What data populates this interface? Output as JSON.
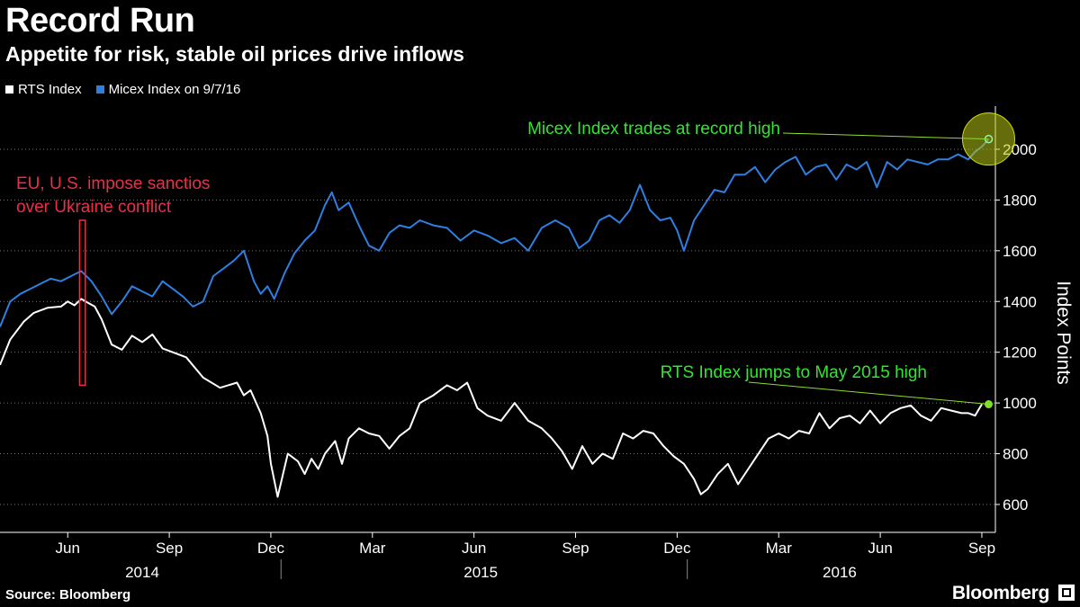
{
  "header": {
    "title": "Record Run",
    "subtitle": "Appetite for risk, stable oil prices drive inflows"
  },
  "legend": [
    {
      "label": "RTS Index",
      "color": "#ffffff"
    },
    {
      "label": "Micex Index on 9/7/16",
      "color": "#2f7fe0"
    }
  ],
  "footer": {
    "source": "Source: Bloomberg",
    "brand": "Bloomberg"
  },
  "chart_data": {
    "type": "line",
    "title": "Record Run",
    "subtitle": "Appetite for risk, stable oil prices drive inflows",
    "ylabel": "Index Points",
    "ylim": [
      490,
      2170
    ],
    "yticks": [
      600,
      800,
      1000,
      1200,
      1400,
      1600,
      1800,
      2000
    ],
    "x_unit": "months since 2014-04-01",
    "xlim": [
      0,
      29.4
    ],
    "grid": "horizontal dotted",
    "legend_position": "top-left",
    "month_ticks": [
      {
        "label": "Jun",
        "x": 2
      },
      {
        "label": "Sep",
        "x": 5
      },
      {
        "label": "Dec",
        "x": 8
      },
      {
        "label": "Mar",
        "x": 11
      },
      {
        "label": "Jun",
        "x": 14
      },
      {
        "label": "Sep",
        "x": 17
      },
      {
        "label": "Dec",
        "x": 20
      },
      {
        "label": "Mar",
        "x": 23
      },
      {
        "label": "Jun",
        "x": 26
      },
      {
        "label": "Sep",
        "x": 29
      }
    ],
    "years": [
      {
        "label": "2014",
        "x": 4.2
      },
      {
        "label": "2015",
        "x": 14.2
      },
      {
        "label": "2016",
        "x": 24.8
      }
    ],
    "year_dividers": [
      8.3,
      20.3
    ],
    "series": [
      {
        "name": "RTS Index",
        "color": "#ffffff",
        "x": [
          0,
          0.3,
          0.7,
          1.0,
          1.4,
          1.8,
          2.0,
          2.2,
          2.4,
          2.6,
          2.8,
          3.0,
          3.3,
          3.6,
          3.9,
          4.2,
          4.5,
          4.8,
          5.1,
          5.5,
          6.0,
          6.5,
          7.0,
          7.2,
          7.4,
          7.7,
          7.9,
          8.0,
          8.2,
          8.5,
          8.8,
          9.0,
          9.2,
          9.4,
          9.6,
          9.9,
          10.1,
          10.3,
          10.6,
          10.9,
          11.2,
          11.5,
          11.8,
          12.1,
          12.4,
          12.8,
          13.2,
          13.5,
          13.8,
          14.1,
          14.4,
          14.8,
          15.2,
          15.6,
          16.0,
          16.3,
          16.6,
          16.9,
          17.2,
          17.5,
          17.8,
          18.1,
          18.4,
          18.7,
          19.0,
          19.3,
          19.6,
          19.9,
          20.2,
          20.5,
          20.7,
          20.9,
          21.2,
          21.5,
          21.8,
          22.1,
          22.4,
          22.7,
          23.0,
          23.3,
          23.6,
          23.9,
          24.2,
          24.5,
          24.8,
          25.1,
          25.4,
          25.7,
          26.0,
          26.3,
          26.6,
          26.9,
          27.2,
          27.5,
          27.8,
          28.1,
          28.4,
          28.6,
          28.8,
          29.0
        ],
        "y": [
          1150,
          1250,
          1320,
          1355,
          1375,
          1380,
          1400,
          1385,
          1410,
          1395,
          1380,
          1330,
          1230,
          1210,
          1265,
          1240,
          1270,
          1215,
          1200,
          1180,
          1100,
          1060,
          1080,
          1030,
          1050,
          960,
          870,
          760,
          630,
          800,
          770,
          720,
          780,
          740,
          800,
          850,
          760,
          860,
          900,
          880,
          870,
          820,
          870,
          900,
          1000,
          1030,
          1070,
          1050,
          1080,
          980,
          950,
          930,
          1000,
          930,
          900,
          860,
          810,
          740,
          830,
          760,
          800,
          780,
          880,
          860,
          890,
          880,
          830,
          790,
          760,
          700,
          640,
          660,
          720,
          760,
          680,
          740,
          800,
          860,
          880,
          860,
          890,
          880,
          960,
          900,
          940,
          950,
          920,
          970,
          920,
          960,
          980,
          990,
          950,
          930,
          980,
          970,
          960,
          960,
          950,
          995
        ]
      },
      {
        "name": "Micex Index on 9/7/16",
        "color": "#2f7fe0",
        "x": [
          0,
          0.3,
          0.6,
          0.9,
          1.2,
          1.5,
          1.8,
          2.1,
          2.4,
          2.7,
          3.0,
          3.3,
          3.6,
          3.9,
          4.2,
          4.5,
          4.8,
          5.1,
          5.4,
          5.7,
          6.0,
          6.3,
          6.6,
          6.9,
          7.2,
          7.5,
          7.7,
          7.9,
          8.1,
          8.4,
          8.7,
          9.0,
          9.3,
          9.6,
          9.8,
          10.0,
          10.3,
          10.6,
          10.9,
          11.2,
          11.5,
          11.8,
          12.1,
          12.4,
          12.8,
          13.2,
          13.6,
          14.0,
          14.4,
          14.8,
          15.2,
          15.6,
          16.0,
          16.4,
          16.8,
          17.1,
          17.4,
          17.7,
          18.0,
          18.3,
          18.6,
          18.9,
          19.2,
          19.5,
          19.8,
          20.0,
          20.2,
          20.5,
          20.8,
          21.1,
          21.4,
          21.7,
          22.0,
          22.3,
          22.6,
          22.9,
          23.2,
          23.5,
          23.8,
          24.1,
          24.4,
          24.7,
          25.0,
          25.3,
          25.6,
          25.9,
          26.2,
          26.5,
          26.8,
          27.1,
          27.4,
          27.7,
          28.0,
          28.3,
          28.6,
          28.8,
          29.0,
          29.2
        ],
        "y": [
          1300,
          1400,
          1430,
          1450,
          1470,
          1490,
          1480,
          1500,
          1520,
          1480,
          1420,
          1350,
          1400,
          1460,
          1440,
          1420,
          1480,
          1450,
          1420,
          1380,
          1400,
          1500,
          1530,
          1560,
          1600,
          1480,
          1430,
          1460,
          1410,
          1510,
          1590,
          1640,
          1680,
          1780,
          1830,
          1760,
          1790,
          1700,
          1620,
          1600,
          1670,
          1700,
          1690,
          1720,
          1700,
          1690,
          1640,
          1680,
          1660,
          1630,
          1650,
          1600,
          1690,
          1720,
          1690,
          1610,
          1640,
          1720,
          1740,
          1710,
          1760,
          1860,
          1760,
          1720,
          1730,
          1680,
          1600,
          1720,
          1780,
          1840,
          1830,
          1900,
          1900,
          1930,
          1870,
          1920,
          1950,
          1970,
          1900,
          1930,
          1940,
          1880,
          1940,
          1920,
          1950,
          1850,
          1950,
          1920,
          1960,
          1950,
          1940,
          1960,
          1960,
          1980,
          1960,
          1990,
          2010,
          2040
        ]
      }
    ],
    "annotations": [
      {
        "text": "Micex Index trades at record high",
        "series": "Micex Index on 9/7/16",
        "x": 29.2,
        "y": 2040
      },
      {
        "text": "RTS Index jumps to May 2015 high",
        "series": "RTS Index",
        "x": 29.2,
        "y": 995
      },
      {
        "text_lines": [
          "EU, U.S. impose sanctios",
          "over Ukraine conflict"
        ],
        "x_start": 2.35,
        "x_end": 2.52,
        "y_top": 1720,
        "y_bottom": 1070
      }
    ]
  }
}
